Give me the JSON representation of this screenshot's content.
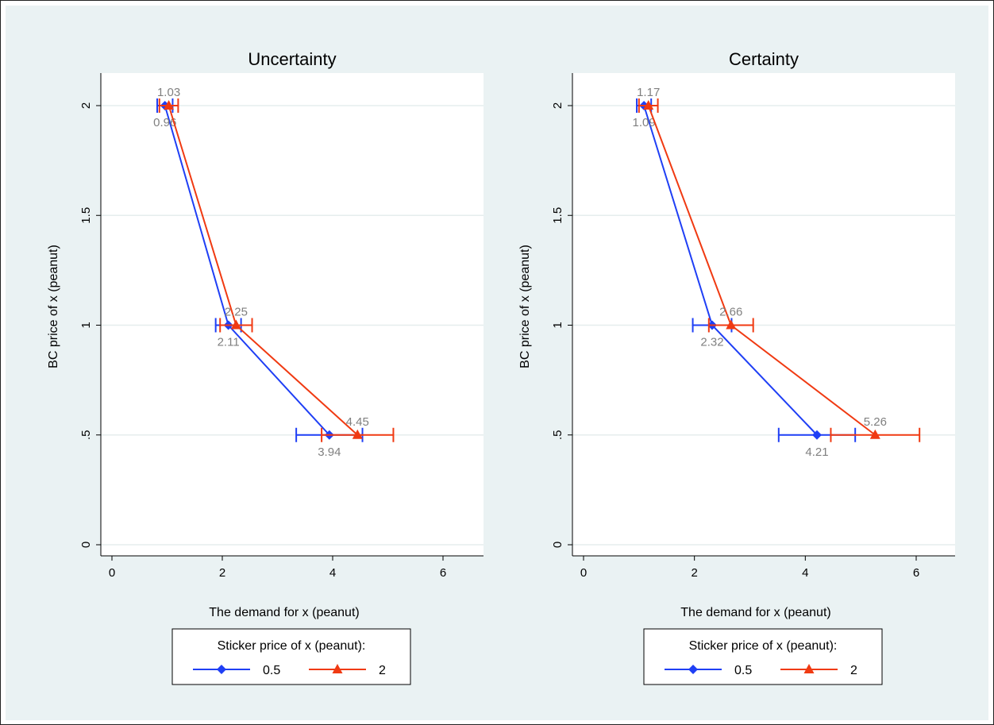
{
  "chart_data": [
    {
      "type": "line",
      "title": "Uncertainty",
      "xlabel": "The demand for x (peanut)",
      "ylabel": "BC price of x (peanut)",
      "xlim": [
        0,
        6.7
      ],
      "ylim": [
        0,
        2.15
      ],
      "xticks": [
        "0",
        "2",
        "4",
        "6"
      ],
      "yticks": [
        "0",
        ".5",
        "1",
        "1.5",
        "2"
      ],
      "grid": true,
      "legend": {
        "title": "Sticker price of x (peanut):",
        "position": "bottom"
      },
      "series": [
        {
          "name": "0.5",
          "color": "#1f3ff5",
          "marker": "diamond",
          "points": [
            {
              "x": 0.96,
              "y": 2,
              "lo": 0.82,
              "hi": 1.1,
              "label": "0.96"
            },
            {
              "x": 2.11,
              "y": 1,
              "lo": 1.88,
              "hi": 2.34,
              "label": "2.11"
            },
            {
              "x": 3.94,
              "y": 0.5,
              "lo": 3.34,
              "hi": 4.54,
              "label": "3.94"
            }
          ]
        },
        {
          "name": "2",
          "color": "#f03a12",
          "marker": "triangle",
          "points": [
            {
              "x": 1.03,
              "y": 2,
              "lo": 0.86,
              "hi": 1.2,
              "label": "1.03"
            },
            {
              "x": 2.25,
              "y": 1,
              "lo": 1.96,
              "hi": 2.54,
              "label": "2.25"
            },
            {
              "x": 4.45,
              "y": 0.5,
              "lo": 3.8,
              "hi": 5.1,
              "label": "4.45"
            }
          ]
        }
      ]
    },
    {
      "type": "line",
      "title": "Certainty",
      "xlabel": "The demand for x (peanut)",
      "ylabel": "BC price of x (peanut)",
      "xlim": [
        0,
        6.7
      ],
      "ylim": [
        0,
        2.15
      ],
      "xticks": [
        "0",
        "2",
        "4",
        "6"
      ],
      "yticks": [
        "0",
        ".5",
        "1",
        "1.5",
        "2"
      ],
      "grid": true,
      "legend": {
        "title": "Sticker price of x (peanut):",
        "position": "bottom"
      },
      "series": [
        {
          "name": "0.5",
          "color": "#1f3ff5",
          "marker": "diamond",
          "points": [
            {
              "x": 1.09,
              "y": 2,
              "lo": 0.96,
              "hi": 1.22,
              "label": "1.09"
            },
            {
              "x": 2.32,
              "y": 1,
              "lo": 1.97,
              "hi": 2.67,
              "label": "2.32"
            },
            {
              "x": 4.21,
              "y": 0.5,
              "lo": 3.52,
              "hi": 4.9,
              "label": "4.21"
            }
          ]
        },
        {
          "name": "2",
          "color": "#f03a12",
          "marker": "triangle",
          "points": [
            {
              "x": 1.17,
              "y": 2,
              "lo": 1.0,
              "hi": 1.34,
              "label": "1.17"
            },
            {
              "x": 2.66,
              "y": 1,
              "lo": 2.26,
              "hi": 3.06,
              "label": "2.66"
            },
            {
              "x": 5.26,
              "y": 0.5,
              "lo": 4.46,
              "hi": 6.06,
              "label": "5.26"
            }
          ]
        }
      ]
    }
  ]
}
